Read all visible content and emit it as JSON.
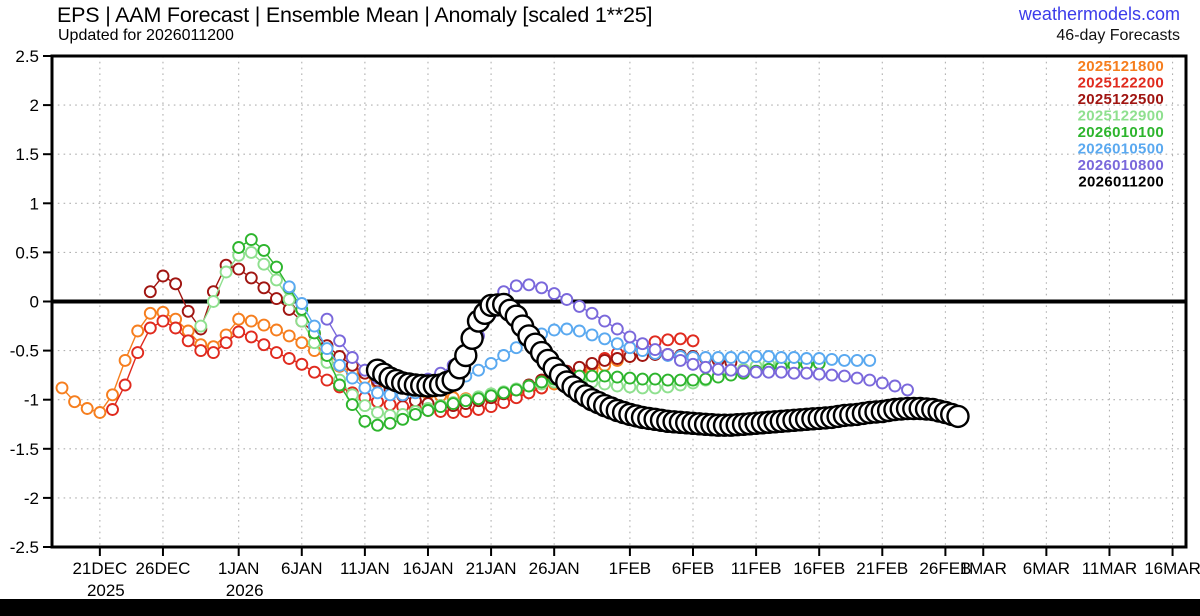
{
  "header": {
    "title": "EPS | AAM Forecast | Ensemble Mean | Anomaly [scaled 1**25]",
    "subtitle": "Updated for 2026011200",
    "watermark": "weathermodels.com",
    "forecast_note": "46-day Forecasts"
  },
  "colors": {
    "background": "#ffffff",
    "watermark_blue": "#3b3bea",
    "grid": "#b0b0b0",
    "axis": "#000000",
    "footer_bar": "#000000"
  },
  "chart_data": {
    "type": "scatter",
    "title": "EPS | AAM Forecast | Ensemble Mean | Anomaly [scaled 1**25]",
    "subtitle": "Updated for 2026011200",
    "xlabel": "",
    "ylabel": "",
    "marker_style": "open-circle",
    "grid": "dotted",
    "zero_line": true,
    "legend_position": "top-right-inside",
    "ylim": [
      -2.5,
      2.5
    ],
    "day0_date": "18DEC2025",
    "y_ticks": [
      {
        "v": 2.5,
        "label": "2.5"
      },
      {
        "v": 2,
        "label": "2"
      },
      {
        "v": 1.5,
        "label": "1.5"
      },
      {
        "v": 1,
        "label": "1"
      },
      {
        "v": 0.5,
        "label": "0.5"
      },
      {
        "v": 0,
        "label": "0"
      },
      {
        "v": -0.5,
        "label": "-0.5"
      },
      {
        "v": -1,
        "label": "-1"
      },
      {
        "v": -1.5,
        "label": "-1.5"
      },
      {
        "v": -2,
        "label": "-2"
      },
      {
        "v": -2.5,
        "label": "-2.5"
      }
    ],
    "x_ticks": [
      {
        "day": 3,
        "label": "21DEC",
        "year": "2025"
      },
      {
        "day": 8,
        "label": "26DEC"
      },
      {
        "day": 14,
        "label": "1JAN",
        "year": "2026"
      },
      {
        "day": 19,
        "label": "6JAN"
      },
      {
        "day": 24,
        "label": "11JAN"
      },
      {
        "day": 29,
        "label": "16JAN"
      },
      {
        "day": 34,
        "label": "21JAN"
      },
      {
        "day": 39,
        "label": "26JAN"
      },
      {
        "day": 45,
        "label": "1FEB"
      },
      {
        "day": 50,
        "label": "6FEB"
      },
      {
        "day": 55,
        "label": "11FEB"
      },
      {
        "day": 60,
        "label": "16FEB"
      },
      {
        "day": 65,
        "label": "21FEB"
      },
      {
        "day": 70,
        "label": "26FEB"
      },
      {
        "day": 73,
        "label": "1MAR"
      },
      {
        "day": 78,
        "label": "6MAR"
      },
      {
        "day": 83,
        "label": "11MAR"
      },
      {
        "day": 88,
        "label": "16MAR"
      }
    ],
    "series": [
      {
        "name": "2025121800",
        "color": "#F67E1E",
        "start_day": 0,
        "marker_radius": 5.5,
        "dense": false,
        "values": [
          -0.88,
          -1.02,
          -1.09,
          -1.13,
          -0.95,
          -0.6,
          -0.3,
          -0.12,
          -0.11,
          -0.18,
          -0.3,
          -0.44,
          -0.46,
          -0.34,
          -0.18,
          -0.2,
          -0.24,
          -0.29,
          -0.35,
          -0.42,
          -0.5,
          -0.58,
          -0.66,
          -0.72,
          -0.78,
          -0.83,
          -0.87,
          -0.9,
          -0.92,
          -0.94,
          -0.96,
          -0.98,
          -0.99,
          -1.0,
          -0.99,
          -0.97,
          -0.94,
          -0.91,
          -0.88,
          -0.84,
          -0.8,
          -0.75,
          -0.7,
          -0.65,
          -0.6,
          -0.56,
          -0.52
        ]
      },
      {
        "name": "2025122200",
        "color": "#E02A1E",
        "start_day": 4,
        "marker_radius": 5.5,
        "dense": false,
        "values": [
          -1.1,
          -0.85,
          -0.52,
          -0.27,
          -0.2,
          -0.27,
          -0.4,
          -0.5,
          -0.52,
          -0.42,
          -0.31,
          -0.36,
          -0.44,
          -0.52,
          -0.58,
          -0.64,
          -0.72,
          -0.8,
          -0.87,
          -0.93,
          -0.98,
          -1.02,
          -1.05,
          -1.07,
          -1.09,
          -1.11,
          -1.12,
          -1.13,
          -1.12,
          -1.1,
          -1.07,
          -1.03,
          -0.98,
          -0.93,
          -0.88,
          -0.82,
          -0.76,
          -0.7,
          -0.64,
          -0.58,
          -0.53,
          -0.48,
          -0.44,
          -0.41,
          -0.39,
          -0.38,
          -0.4
        ]
      },
      {
        "name": "2025122500",
        "color": "#A01511",
        "start_day": 7,
        "marker_radius": 5.5,
        "dense": false,
        "values": [
          0.1,
          0.26,
          0.18,
          -0.1,
          -0.28,
          0.1,
          0.37,
          0.33,
          0.24,
          0.14,
          0.03,
          -0.08,
          -0.2,
          -0.33,
          -0.45,
          -0.56,
          -0.65,
          -0.73,
          -0.81,
          -0.89,
          -0.96,
          -1.01,
          -1.04,
          -1.06,
          -1.06,
          -1.04,
          -1.01,
          -0.98,
          -0.94,
          -0.9,
          -0.85,
          -0.8,
          -0.75,
          -0.71,
          -0.67,
          -0.63,
          -0.6,
          -0.58,
          -0.56,
          -0.55,
          -0.54,
          -0.54,
          -0.55,
          -0.56,
          -0.58,
          -0.6,
          -0.62
        ]
      },
      {
        "name": "2025122900",
        "color": "#8FE08F",
        "start_day": 11,
        "marker_radius": 5.5,
        "dense": false,
        "values": [
          -0.25,
          0.0,
          0.3,
          0.47,
          0.5,
          0.38,
          0.22,
          0.02,
          -0.2,
          -0.42,
          -0.62,
          -0.8,
          -0.95,
          -1.06,
          -1.13,
          -1.16,
          -1.15,
          -1.12,
          -1.09,
          -1.06,
          -1.03,
          -1.0,
          -0.97,
          -0.94,
          -0.92,
          -0.89,
          -0.86,
          -0.84,
          -0.82,
          -0.81,
          -0.81,
          -0.82,
          -0.84,
          -0.86,
          -0.87,
          -0.88,
          -0.88,
          -0.87,
          -0.85,
          -0.83,
          -0.8,
          -0.76,
          -0.72,
          -0.69,
          -0.66,
          -0.64,
          -0.63
        ]
      },
      {
        "name": "2026010100",
        "color": "#2DB52D",
        "start_day": 14,
        "marker_radius": 5.5,
        "dense": false,
        "values": [
          0.55,
          0.63,
          0.52,
          0.35,
          0.14,
          -0.08,
          -0.32,
          -0.55,
          -0.85,
          -1.05,
          -1.22,
          -1.26,
          -1.24,
          -1.2,
          -1.15,
          -1.11,
          -1.07,
          -1.04,
          -1.01,
          -0.99,
          -0.96,
          -0.93,
          -0.9,
          -0.86,
          -0.82,
          -0.79,
          -0.77,
          -0.76,
          -0.76,
          -0.76,
          -0.77,
          -0.78,
          -0.79,
          -0.79,
          -0.8,
          -0.8,
          -0.8,
          -0.79,
          -0.77,
          -0.75,
          -0.73,
          -0.71,
          -0.69,
          -0.67,
          -0.65,
          -0.64,
          -0.63
        ]
      },
      {
        "name": "2026010500",
        "color": "#5AA9F0",
        "start_day": 18,
        "marker_radius": 5.5,
        "dense": false,
        "values": [
          0.15,
          -0.02,
          -0.25,
          -0.48,
          -0.65,
          -0.78,
          -0.88,
          -0.93,
          -0.95,
          -0.95,
          -0.93,
          -0.9,
          -0.86,
          -0.81,
          -0.76,
          -0.7,
          -0.63,
          -0.55,
          -0.47,
          -0.39,
          -0.33,
          -0.29,
          -0.28,
          -0.3,
          -0.34,
          -0.38,
          -0.43,
          -0.47,
          -0.5,
          -0.53,
          -0.55,
          -0.56,
          -0.57,
          -0.57,
          -0.57,
          -0.57,
          -0.57,
          -0.56,
          -0.56,
          -0.57,
          -0.57,
          -0.58,
          -0.58,
          -0.59,
          -0.6,
          -0.6,
          -0.6
        ]
      },
      {
        "name": "2026010800",
        "color": "#7A68DB",
        "start_day": 21,
        "marker_radius": 5.5,
        "dense": false,
        "values": [
          -0.18,
          -0.4,
          -0.57,
          -0.7,
          -0.78,
          -0.83,
          -0.85,
          -0.83,
          -0.79,
          -0.73,
          -0.65,
          -0.55,
          -0.35,
          -0.12,
          0.1,
          0.16,
          0.17,
          0.14,
          0.08,
          0.02,
          -0.05,
          -0.12,
          -0.2,
          -0.28,
          -0.36,
          -0.43,
          -0.49,
          -0.54,
          -0.6,
          -0.64,
          -0.67,
          -0.69,
          -0.7,
          -0.71,
          -0.72,
          -0.72,
          -0.72,
          -0.73,
          -0.73,
          -0.74,
          -0.75,
          -0.76,
          -0.78,
          -0.8,
          -0.83,
          -0.86,
          -0.9
        ]
      },
      {
        "name": "2026011200",
        "color": "#000000",
        "start_day": 25,
        "marker_radius": 10.5,
        "dense": true,
        "values": [
          -0.7,
          -0.78,
          -0.83,
          -0.85,
          -0.86,
          -0.85,
          -0.8,
          -0.55,
          -0.2,
          -0.04,
          -0.03,
          -0.15,
          -0.35,
          -0.52,
          -0.68,
          -0.82,
          -0.92,
          -1.0,
          -1.06,
          -1.11,
          -1.15,
          -1.18,
          -1.2,
          -1.22,
          -1.23,
          -1.24,
          -1.25,
          -1.26,
          -1.26,
          -1.25,
          -1.24,
          -1.23,
          -1.22,
          -1.21,
          -1.2,
          -1.19,
          -1.18,
          -1.16,
          -1.15,
          -1.13,
          -1.12,
          -1.1,
          -1.09,
          -1.09,
          -1.1,
          -1.13,
          -1.17
        ]
      }
    ]
  }
}
